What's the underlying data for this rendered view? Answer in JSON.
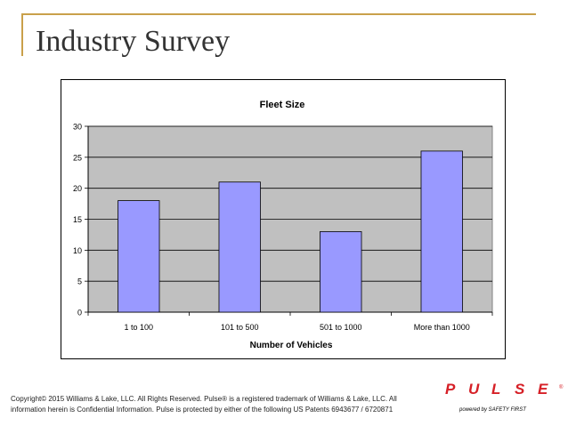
{
  "slide": {
    "title": "Industry Survey",
    "footer_line1": "Copyright© 2015 Williams & Lake, LLC. All Rights Reserved. Pulse® is a registered trademark of Williams & Lake, LLC. All",
    "footer_line2": "information herein is Confidential Information. Pulse is protected by either of the following US Patents 6943677 / 6720871"
  },
  "logo": {
    "letters": [
      "P",
      "U",
      "L",
      "S",
      "E"
    ],
    "tagline": "powered by SAFETY FIRST",
    "mark": "®"
  },
  "colors": {
    "bar_fill": "#9999ff",
    "plot_bg": "#c0c0c0",
    "frame_gold": "#c9a04a",
    "logo_red": "#d62027"
  },
  "chart_data": {
    "type": "bar",
    "title": "Fleet Size",
    "xlabel": "Number of Vehicles",
    "ylabel": "",
    "categories": [
      "1 to 100",
      "101 to 500",
      "501 to 1000",
      "More than 1000"
    ],
    "values": [
      18,
      21,
      13,
      26
    ],
    "ylim": [
      0,
      30
    ],
    "yticks": [
      0,
      5,
      10,
      15,
      20,
      25,
      30
    ],
    "grid": true,
    "legend": "none"
  }
}
